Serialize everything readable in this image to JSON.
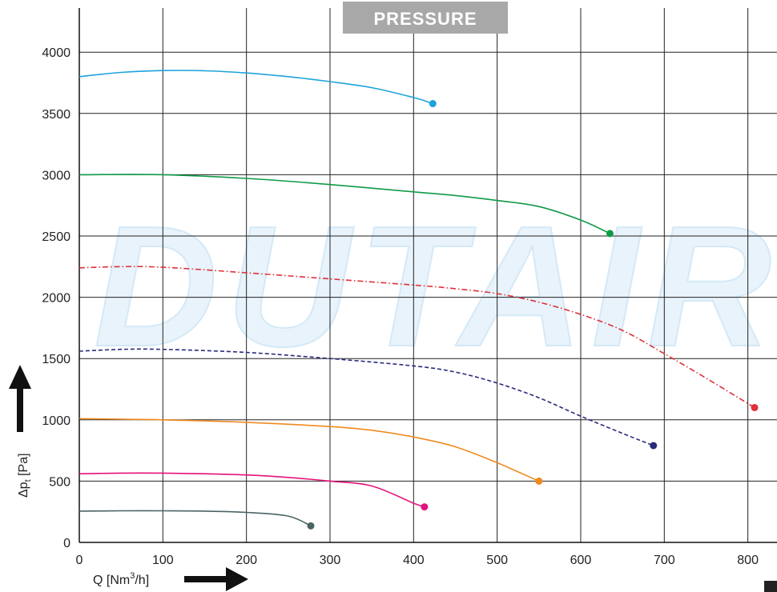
{
  "chart_data": {
    "type": "line",
    "title": "PRESSURE",
    "watermark": "DUTAIR",
    "xlabel": "Q [Nm³/h]",
    "ylabel": "Δpt [Pa]",
    "xlim": [
      0,
      830
    ],
    "ylim": [
      0,
      4400
    ],
    "x_ticks": [
      0,
      100,
      200,
      300,
      400,
      500,
      600,
      700,
      800
    ],
    "y_ticks": [
      0,
      500,
      1000,
      1500,
      2000,
      2500,
      3000,
      3500,
      4000
    ],
    "grid": true,
    "series": [
      {
        "color": "#1ea3dc",
        "dash": "solid",
        "x": [
          0,
          50,
          100,
          150,
          200,
          250,
          300,
          350,
          400,
          423
        ],
        "y": [
          3800,
          3835,
          3850,
          3848,
          3830,
          3800,
          3760,
          3710,
          3630,
          3580
        ]
      },
      {
        "color": "#109a47",
        "dash": "solid",
        "x": [
          0,
          100,
          200,
          300,
          400,
          450,
          500,
          550,
          600,
          635
        ],
        "y": [
          3000,
          3000,
          2970,
          2920,
          2860,
          2830,
          2790,
          2740,
          2630,
          2520
        ]
      },
      {
        "color": "#e0303a",
        "dash": "dashdot",
        "x": [
          0,
          50,
          100,
          200,
          300,
          400,
          450,
          500,
          550,
          600,
          650,
          700,
          750,
          808
        ],
        "y": [
          2240,
          2250,
          2245,
          2200,
          2150,
          2100,
          2070,
          2030,
          1960,
          1860,
          1730,
          1540,
          1340,
          1100
        ]
      },
      {
        "color": "#2b2b7d",
        "dash": "dashed",
        "x": [
          0,
          50,
          100,
          200,
          300,
          400,
          450,
          500,
          550,
          600,
          650,
          687
        ],
        "y": [
          1560,
          1575,
          1575,
          1550,
          1500,
          1440,
          1390,
          1300,
          1180,
          1030,
          890,
          790
        ]
      },
      {
        "color": "#f08a1e",
        "dash": "solid",
        "x": [
          0,
          50,
          100,
          200,
          300,
          350,
          400,
          450,
          500,
          550
        ],
        "y": [
          1010,
          1005,
          1000,
          980,
          945,
          915,
          860,
          780,
          650,
          500
        ]
      },
      {
        "color": "#e4127b",
        "dash": "solid",
        "x": [
          0,
          50,
          100,
          150,
          200,
          250,
          300,
          350,
          400,
          413
        ],
        "y": [
          560,
          565,
          565,
          560,
          550,
          530,
          500,
          460,
          320,
          290
        ]
      },
      {
        "color": "#4a6464",
        "dash": "solid",
        "x": [
          0,
          50,
          100,
          150,
          200,
          250,
          277
        ],
        "y": [
          255,
          258,
          258,
          255,
          245,
          215,
          135
        ]
      }
    ]
  }
}
